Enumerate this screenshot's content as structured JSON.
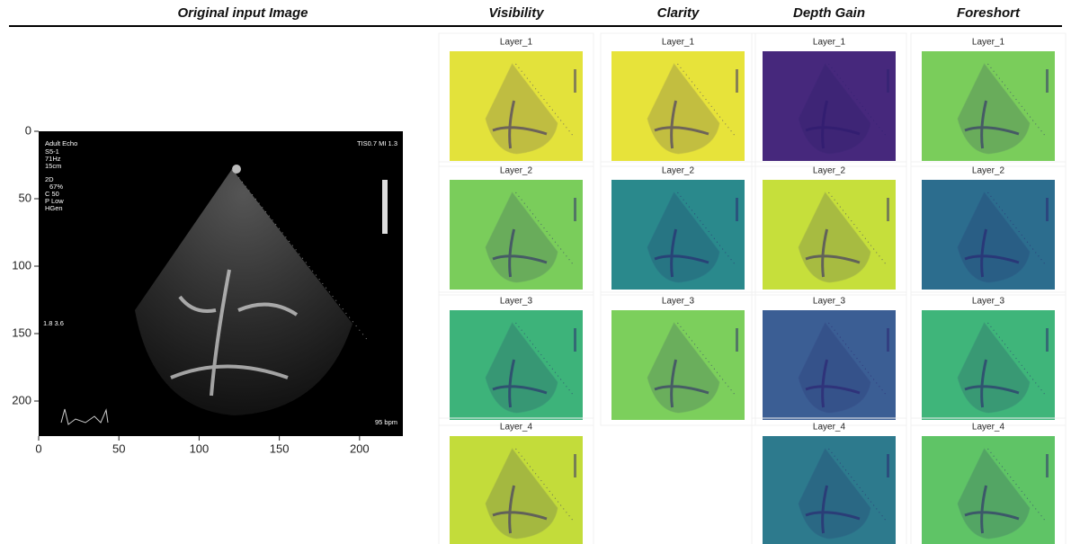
{
  "headers": {
    "original": "Original input Image"
  },
  "original_image": {
    "xlim": [
      0,
      227
    ],
    "ylim": [
      0,
      226
    ],
    "xticks": [
      0,
      50,
      100,
      150,
      200
    ],
    "yticks": [
      0,
      50,
      100,
      150,
      200
    ],
    "overlay": [
      "Adult Echo",
      "S5-1",
      "71Hz",
      "15cm",
      "2D",
      "67%",
      "C 50",
      "P Low",
      "HGen"
    ],
    "top_right": "TIS0.7  MI 1.3",
    "scale_note": "1.8  3.6",
    "heart_rate": "95 bpm"
  },
  "columns": [
    {
      "title": "Visibility",
      "layers": [
        {
          "label": "Layer_1",
          "color": "#e3e23b"
        },
        {
          "label": "Layer_2",
          "color": "#7acd5b"
        },
        {
          "label": "Layer_3",
          "color": "#3db37a"
        },
        {
          "label": "Layer_4",
          "color": "#c3dc3a"
        }
      ]
    },
    {
      "title": "Clarity",
      "layers": [
        {
          "label": "Layer_1",
          "color": "#e7e33a"
        },
        {
          "label": "Layer_2",
          "color": "#2a898c"
        },
        {
          "label": "Layer_3",
          "color": "#7ccf5c"
        }
      ]
    },
    {
      "title": "Depth Gain",
      "layers": [
        {
          "label": "Layer_1",
          "color": "#46287c"
        },
        {
          "label": "Layer_2",
          "color": "#c6df3b"
        },
        {
          "label": "Layer_3",
          "color": "#3b5e94"
        },
        {
          "label": "Layer_4",
          "color": "#2d7a8d"
        }
      ]
    },
    {
      "title": "Foreshort",
      "layers": [
        {
          "label": "Layer_1",
          "color": "#7acd5b"
        },
        {
          "label": "Layer_2",
          "color": "#2c6d8e"
        },
        {
          "label": "Layer_3",
          "color": "#3fb57a"
        },
        {
          "label": "Layer_4",
          "color": "#5fc466"
        }
      ]
    }
  ]
}
